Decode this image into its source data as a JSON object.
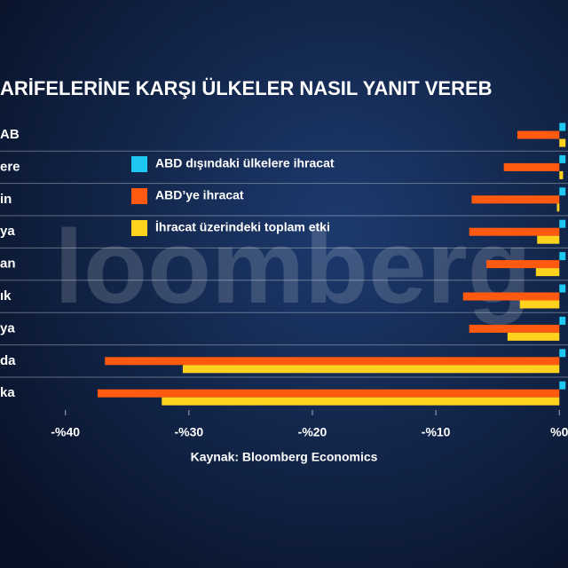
{
  "chart_data": {
    "type": "bar",
    "orientation": "horizontal",
    "title": "ARİFELERİNE KARŞI ÜLKELER NASIL YANIT VEREB",
    "watermark": "loomberg",
    "source": "Kaynak: Bloomberg Economics",
    "categories": [
      "AB",
      "ere",
      "in",
      "ya",
      "an",
      "ık",
      "ya",
      "da",
      "ka"
    ],
    "series": [
      {
        "name": "ABD dışındaki ülkelere ihracat",
        "color": "#1ec8f0",
        "values": [
          0.5,
          0.5,
          0.5,
          0.5,
          0.5,
          0.5,
          0.5,
          0.5,
          0.5
        ]
      },
      {
        "name": "ABD’ye ihracat",
        "color": "#ff5a10",
        "values": [
          -3.4,
          -4.5,
          -7.1,
          -7.3,
          -5.9,
          -7.8,
          -7.3,
          -36.8,
          -37.4
        ]
      },
      {
        "name": "İhracat üzerindeki toplam etki",
        "color": "#ffd21e",
        "values": [
          0.5,
          0.3,
          -0.2,
          -1.8,
          -1.9,
          -3.2,
          -4.2,
          -30.5,
          -32.2
        ]
      }
    ],
    "xlim": [
      -45.3,
      0.7
    ],
    "xticks": [
      {
        "value": -40,
        "label": "-%40"
      },
      {
        "value": -30,
        "label": "-%30"
      },
      {
        "value": -20,
        "label": "-%20"
      },
      {
        "value": -10,
        "label": "-%10"
      },
      {
        "value": 0,
        "label": "%0"
      }
    ]
  }
}
